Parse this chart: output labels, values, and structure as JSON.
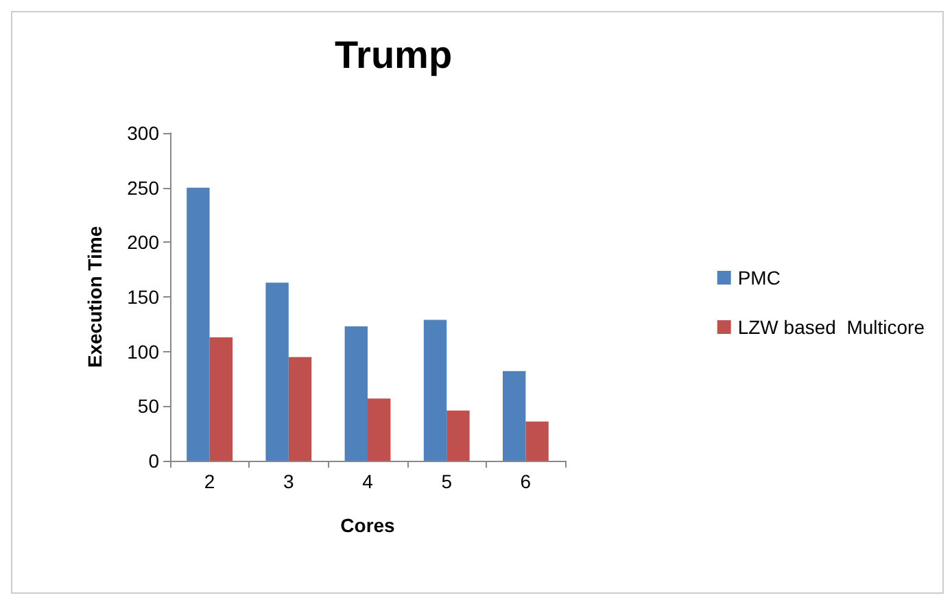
{
  "chart_data": {
    "type": "bar",
    "title": "Trump",
    "xlabel": "Cores",
    "ylabel": "Execution Time",
    "categories": [
      "2",
      "3",
      "4",
      "5",
      "6"
    ],
    "series": [
      {
        "name": "PMC",
        "color": "#4f81bd",
        "values": [
          250,
          163,
          123,
          129,
          82
        ]
      },
      {
        "name": "LZW based  Multicore",
        "color": "#c0504d",
        "values": [
          113,
          95,
          57,
          46,
          36
        ]
      }
    ],
    "ylim": [
      0,
      300
    ],
    "yticks": [
      0,
      50,
      100,
      150,
      200,
      250,
      300
    ],
    "grid": false,
    "legend": "right"
  }
}
